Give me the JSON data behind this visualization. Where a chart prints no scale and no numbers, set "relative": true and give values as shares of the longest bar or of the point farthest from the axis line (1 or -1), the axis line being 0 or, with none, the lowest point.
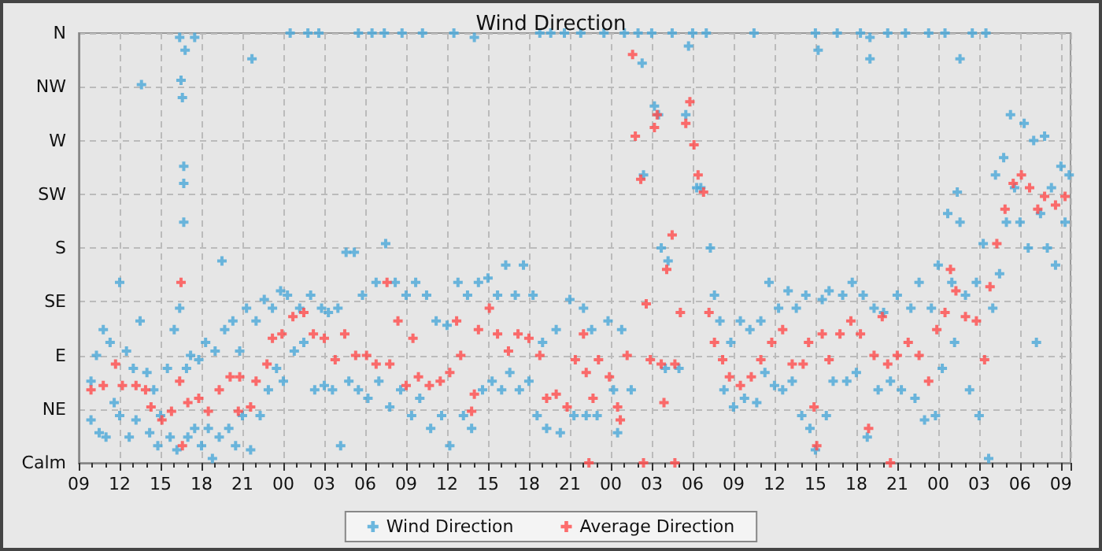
{
  "chart_data": {
    "type": "scatter",
    "title": "Wind Direction",
    "legend": "bottom",
    "grid": true,
    "marker": "cross",
    "xlim": [
      9,
      81.7
    ],
    "xticks": [
      {
        "value": 9,
        "label": "09"
      },
      {
        "value": 12,
        "label": "12"
      },
      {
        "value": 15,
        "label": "15"
      },
      {
        "value": 18,
        "label": "18"
      },
      {
        "value": 21,
        "label": "21"
      },
      {
        "value": 24,
        "label": "00"
      },
      {
        "value": 27,
        "label": "03"
      },
      {
        "value": 30,
        "label": "06"
      },
      {
        "value": 33,
        "label": "09"
      },
      {
        "value": 36,
        "label": "12"
      },
      {
        "value": 39,
        "label": "15"
      },
      {
        "value": 42,
        "label": "18"
      },
      {
        "value": 45,
        "label": "21"
      },
      {
        "value": 48,
        "label": "00"
      },
      {
        "value": 51,
        "label": "03"
      },
      {
        "value": 54,
        "label": "06"
      },
      {
        "value": 57,
        "label": "09"
      },
      {
        "value": 60,
        "label": "12"
      },
      {
        "value": 63,
        "label": "15"
      },
      {
        "value": 66,
        "label": "18"
      },
      {
        "value": 69,
        "label": "21"
      },
      {
        "value": 72,
        "label": "00"
      },
      {
        "value": 75,
        "label": "03"
      },
      {
        "value": 78,
        "label": "06"
      },
      {
        "value": 81,
        "label": "09"
      }
    ],
    "relative": true,
    "y_categories": [
      "N",
      "NW",
      "W",
      "SW",
      "S",
      "SE",
      "E",
      "NE",
      "Calm"
    ],
    "series": [
      {
        "name": "Wind Direction",
        "color": "#4aa8d8",
        "x": [
          9.9,
          9.9,
          10.3,
          10.5,
          10.8,
          11,
          11.3,
          11.6,
          12,
          12,
          12.5,
          12.7,
          13,
          13.2,
          13.5,
          13.6,
          14,
          14.2,
          14.5,
          14.8,
          15,
          15.5,
          15.7,
          16,
          16.2,
          16.4,
          16.4,
          16.5,
          16.6,
          16.7,
          16.7,
          16.7,
          16.8,
          16.9,
          17,
          17.2,
          17.5,
          17.5,
          17.8,
          18,
          18.3,
          18.5,
          18.8,
          19,
          19.3,
          19.5,
          19.7,
          20,
          20.3,
          20.5,
          20.8,
          21,
          21.3,
          21.6,
          21.7,
          22,
          22.3,
          22.6,
          22.9,
          23.2,
          23.5,
          23.8,
          24,
          24.3,
          24.5,
          24.8,
          25.2,
          25.5,
          25.8,
          26,
          26.3,
          26.6,
          26.8,
          27,
          27.3,
          27.6,
          28,
          28.2,
          28.6,
          28.8,
          29.2,
          29.5,
          29.5,
          29.8,
          30.2,
          30.5,
          30.8,
          31,
          31.4,
          31.5,
          31.8,
          32.2,
          32.6,
          32.7,
          33,
          33.4,
          33.7,
          34,
          34.2,
          34.5,
          34.8,
          35.2,
          35.6,
          36,
          36.2,
          36.5,
          36.8,
          37.2,
          37.5,
          37.8,
          38,
          38.3,
          38.6,
          39,
          39.3,
          39.7,
          40,
          40.3,
          40.6,
          41,
          41.3,
          41.6,
          42,
          42.3,
          42.6,
          42.8,
          43,
          43.3,
          43.6,
          44,
          44.3,
          44.6,
          45,
          45.3,
          45.8,
          46,
          46.2,
          46.6,
          47,
          47.5,
          47.8,
          48.2,
          48.5,
          48.8,
          49,
          49.5,
          50,
          50.3,
          50.4,
          51,
          51.2,
          51.5,
          51.7,
          52,
          52.2,
          52.5,
          53,
          53.5,
          53.7,
          54,
          54.3,
          54.6,
          55,
          55.3,
          55.6,
          56,
          56.3,
          56.8,
          57,
          57.5,
          57.8,
          58.2,
          58.5,
          58.7,
          59,
          59.3,
          59.6,
          60,
          60.3,
          60.6,
          61,
          61.3,
          61.6,
          62,
          62.3,
          62.6,
          63,
          63,
          63.2,
          63.5,
          63.8,
          64,
          64.3,
          64.6,
          65,
          65.3,
          65.7,
          66,
          66.3,
          66.5,
          66.8,
          67,
          67,
          67.3,
          67.6,
          68,
          68.3,
          68.5,
          69,
          69.3,
          69.6,
          70,
          70.3,
          70.6,
          71,
          71.3,
          71.5,
          71.8,
          72,
          72.3,
          72.5,
          72.7,
          73,
          73.2,
          73.4,
          73.6,
          73.6,
          74,
          74.3,
          74.5,
          74.8,
          75,
          75.3,
          75.5,
          75.7,
          76,
          76.2,
          76.5,
          76.8,
          77,
          77.3,
          77.6,
          78,
          78.3,
          78.6,
          79,
          79.2,
          79.5,
          79.8,
          80,
          80.3,
          80.6,
          81,
          81.3,
          81.6
        ],
        "values": [
          0.19,
          0.1,
          0.25,
          0.07,
          0.31,
          0.06,
          0.28,
          0.14,
          0.42,
          0.11,
          0.26,
          0.06,
          0.22,
          0.1,
          0.33,
          0.88,
          0.21,
          0.07,
          0.17,
          0.04,
          0.11,
          0.22,
          0.06,
          0.31,
          0.03,
          0.36,
          0.99,
          0.89,
          0.85,
          0.69,
          0.65,
          0.56,
          0.96,
          0.22,
          0.06,
          0.25,
          0.08,
          0.99,
          0.24,
          0.04,
          0.28,
          0.08,
          0.01,
          0.26,
          0.06,
          0.47,
          0.31,
          0.08,
          0.33,
          0.04,
          0.26,
          0.11,
          0.36,
          0.03,
          0.94,
          0.33,
          0.11,
          0.38,
          0.17,
          0.36,
          0.22,
          0.4,
          0.19,
          0.39,
          1,
          0.26,
          0.36,
          0.28,
          1,
          0.39,
          0.17,
          1,
          0.36,
          0.18,
          0.35,
          0.17,
          0.36,
          0.04,
          0.49,
          0.19,
          0.49,
          0.17,
          1,
          0.39,
          0.15,
          1,
          0.42,
          0.19,
          1,
          0.51,
          0.13,
          0.42,
          0.17,
          1,
          0.39,
          0.11,
          0.42,
          0.15,
          1,
          0.39,
          0.08,
          0.33,
          0.11,
          0.32,
          0.04,
          1,
          0.42,
          0.11,
          0.39,
          0.08,
          0.99,
          0.42,
          0.17,
          0.43,
          0.19,
          0.39,
          0.17,
          0.46,
          0.21,
          0.39,
          0.17,
          0.46,
          0.19,
          0.39,
          0.11,
          1,
          0.28,
          0.08,
          1,
          0.31,
          0.07,
          1,
          0.38,
          0.11,
          1,
          0.36,
          0.11,
          0.31,
          0.11,
          1,
          0.33,
          0.17,
          0.07,
          0.31,
          1,
          0.17,
          1,
          0.93,
          0.67,
          1,
          0.83,
          0.81,
          0.5,
          0.22,
          0.47,
          1,
          0.22,
          0.81,
          0.97,
          1,
          0.64,
          0.64,
          1,
          0.5,
          0.39,
          0.33,
          0.17,
          0.28,
          0.13,
          0.33,
          0.15,
          0.31,
          1,
          0.14,
          0.33,
          0.21,
          0.42,
          0.18,
          0.36,
          0.17,
          0.4,
          0.19,
          0.36,
          0.11,
          0.39,
          0.08,
          0.03,
          1,
          0.96,
          0.38,
          0.11,
          0.4,
          0.19,
          1,
          0.39,
          0.19,
          0.42,
          0.21,
          1,
          0.39,
          0.06,
          0.99,
          0.94,
          0.36,
          0.17,
          0.35,
          1,
          0.19,
          0.39,
          0.17,
          1,
          0.36,
          0.15,
          0.42,
          0.1,
          1,
          0.36,
          0.11,
          0.46,
          0.22,
          1,
          0.58,
          0.42,
          0.28,
          0.63,
          0.56,
          0.94,
          0.39,
          0.17,
          1,
          0.42,
          0.11,
          0.51,
          1,
          0.01,
          0.36,
          0.67,
          0.44,
          0.71,
          0.56,
          0.81,
          0.64,
          0.56,
          0.79,
          0.5,
          0.75,
          0.28,
          0.58,
          0.76,
          0.5,
          0.64,
          0.46,
          0.69,
          0.56,
          0.67
        ]
      },
      {
        "name": "Average Direction",
        "color": "#ff4b4b",
        "x": [
          9.9,
          10.8,
          11.7,
          12.2,
          13.2,
          13.9,
          14.3,
          15.1,
          15.8,
          16.4,
          16.5,
          16.6,
          17,
          17.8,
          18.5,
          19.3,
          20.1,
          20.7,
          20.8,
          21.6,
          22,
          22.8,
          23.2,
          23.9,
          24.7,
          25.5,
          26.2,
          27,
          27.8,
          28.5,
          29.3,
          30.1,
          30.8,
          31.6,
          31.8,
          32.4,
          33,
          33.5,
          33.9,
          34.7,
          35.5,
          36.2,
          36.7,
          37,
          37.8,
          38,
          38.3,
          39.1,
          39.7,
          40.5,
          41.2,
          42,
          42.8,
          43.3,
          44,
          44.8,
          45.4,
          46,
          46.2,
          46.4,
          46.7,
          47.1,
          47.9,
          48.5,
          48.7,
          49.2,
          49.6,
          49.8,
          50.2,
          50.4,
          50.6,
          50.9,
          51.2,
          51.4,
          51.7,
          51.9,
          52.1,
          52.5,
          52.7,
          52.7,
          53.1,
          53.5,
          53.8,
          54.1,
          54.4,
          54.8,
          55.2,
          55.6,
          56.2,
          56.7,
          57.5,
          58.3,
          59,
          59.8,
          60.6,
          61.3,
          62.1,
          62.5,
          62.9,
          63.1,
          63.5,
          64,
          64.8,
          65.6,
          66.3,
          66.9,
          67.3,
          67.9,
          68.3,
          68.5,
          69,
          69.8,
          70.6,
          71.3,
          71.9,
          72.5,
          72.9,
          73.3,
          74,
          74.8,
          75.4,
          75.8,
          76.3,
          76.9,
          77.5,
          78.1,
          78.7,
          79.3,
          79.8,
          80.6,
          81.3
        ],
        "values": [
          0.17,
          0.18,
          0.23,
          0.18,
          0.18,
          0.17,
          0.13,
          0.1,
          0.12,
          0.19,
          0.42,
          0.04,
          0.14,
          0.15,
          0.12,
          0.17,
          0.2,
          0.12,
          0.2,
          0.13,
          0.19,
          0.23,
          0.29,
          0.3,
          0.34,
          0.35,
          0.3,
          0.29,
          0.24,
          0.3,
          0.25,
          0.25,
          0.23,
          0.42,
          0.23,
          0.33,
          0.18,
          0.29,
          0.2,
          0.18,
          0.19,
          0.21,
          0.33,
          0.25,
          0.12,
          0.16,
          0.31,
          0.36,
          0.3,
          0.26,
          0.3,
          0.29,
          0.25,
          0.15,
          0.16,
          0.13,
          0.24,
          0.3,
          0.21,
          0,
          0.15,
          0.24,
          0.2,
          0.13,
          0.1,
          0.25,
          0.95,
          0.76,
          0.66,
          0,
          0.37,
          0.24,
          0.78,
          0.81,
          0.23,
          0.14,
          0.45,
          0.53,
          0.23,
          0,
          0.35,
          0.79,
          0.84,
          0.74,
          0.67,
          0.63,
          0.35,
          0.28,
          0.24,
          0.2,
          0.18,
          0.2,
          0.24,
          0.28,
          0.31,
          0.23,
          0.23,
          0.28,
          0.13,
          0.04,
          0.3,
          0.24,
          0.3,
          0.33,
          0.3,
          0.08,
          0.25,
          0.34,
          0.23,
          0,
          0.25,
          0.28,
          0.25,
          0.19,
          0.31,
          0.35,
          0.45,
          0.4,
          0.34,
          0.33,
          0.24,
          0.41,
          0.51,
          0.59,
          0.65,
          0.67,
          0.64,
          0.59,
          0.62,
          0.6,
          0.62
        ]
      }
    ]
  }
}
